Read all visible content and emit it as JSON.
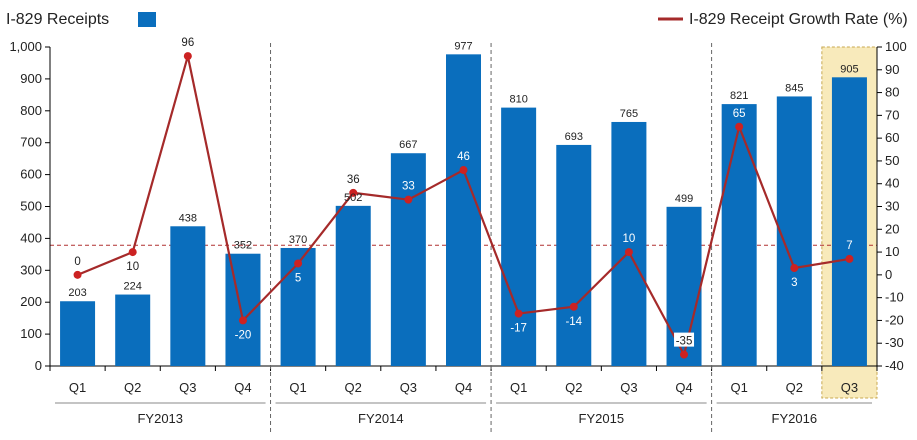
{
  "chart_data": {
    "type": "bar+line",
    "legend": {
      "bar_series": "I-829 Receipts",
      "line_series": "I-829 Receipt Growth Rate (%)",
      "placement": "top"
    },
    "groups": [
      {
        "label": "FY2013",
        "quarters": [
          "Q1",
          "Q2",
          "Q3",
          "Q4"
        ]
      },
      {
        "label": "FY2014",
        "quarters": [
          "Q1",
          "Q2",
          "Q3",
          "Q4"
        ]
      },
      {
        "label": "FY2015",
        "quarters": [
          "Q1",
          "Q2",
          "Q3",
          "Q4"
        ]
      },
      {
        "label": "FY2016",
        "quarters": [
          "Q1",
          "Q2",
          "Q3"
        ]
      }
    ],
    "series": [
      {
        "name": "I-829 Receipts",
        "type": "bar",
        "axis": "left",
        "values": [
          203,
          224,
          438,
          352,
          370,
          502,
          667,
          977,
          810,
          693,
          765,
          499,
          821,
          845,
          905
        ]
      },
      {
        "name": "I-829 Receipt Growth Rate (%)",
        "type": "line",
        "axis": "right",
        "values": [
          0,
          10,
          96,
          -20,
          5,
          36,
          33,
          46,
          -17,
          -14,
          10,
          -35,
          65,
          3,
          7
        ]
      }
    ],
    "left_axis": {
      "range": [
        0,
        1000
      ],
      "ticks": [
        "0",
        "100",
        "200",
        "300",
        "400",
        "500",
        "600",
        "700",
        "800",
        "900",
        "1,000"
      ]
    },
    "right_axis": {
      "range": [
        -40,
        100
      ],
      "ticks": [
        "-40",
        "-30",
        "-20",
        "-10",
        "0",
        "10",
        "20",
        "30",
        "40",
        "50",
        "60",
        "70",
        "80",
        "90",
        "100"
      ]
    },
    "reference_line": {
      "axis": "right",
      "value": 13,
      "style": "dashed"
    },
    "highlight": "FY2016 Q3",
    "grid": false,
    "colors": {
      "bar": "#0a6ebd",
      "line": "#a52a2a",
      "marker": "#cc2222",
      "highlight": "#f8eabb",
      "text": "#222222"
    }
  }
}
